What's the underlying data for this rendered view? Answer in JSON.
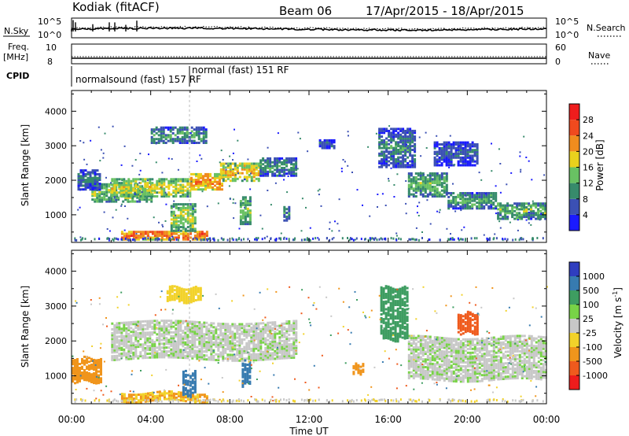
{
  "header": {
    "station": "Kodiak (fitACF)",
    "beam": "Beam 06",
    "dates": "17/Apr/2015 - 18/Apr/2015"
  },
  "side_labels": {
    "nsky": "N.Sky",
    "nsearch": "N.Search",
    "freq": "Freq.",
    "freq_unit": "[MHz]",
    "nave": "Nave",
    "cpid": "CPID"
  },
  "top_scales": {
    "noise_left_top": "10^5",
    "noise_left_bottom": "10^0",
    "noise_right_top": "10^5",
    "noise_right_bottom": "10^0",
    "freq_left_top": "10",
    "freq_left_bottom": "8",
    "nave_right_top": "60",
    "nave_right_bottom": "0"
  },
  "cpid_labels": {
    "mode1": "normalsound (fast) 157 RF",
    "mode2": "normal (fast) 151 RF"
  },
  "chart_data": [
    {
      "type": "heatmap",
      "name": "power",
      "ylabel": "Slant Range [km]",
      "ylim": [
        200,
        4600
      ],
      "yticks": [
        1000,
        2000,
        3000,
        4000
      ],
      "xlabel": "Time UT",
      "xlim_hours": [
        0,
        24
      ],
      "xticks": [
        "00:00",
        "04:00",
        "08:00",
        "12:00",
        "16:00",
        "20:00",
        "00:00"
      ],
      "colorbar": {
        "label": "Power [dB]",
        "range": [
          0,
          32
        ],
        "ticks": [
          "4",
          "8",
          "12",
          "16",
          "20",
          "24",
          "28"
        ],
        "colors": [
          "#1a1aff",
          "#3b50b4",
          "#378b6b",
          "#69c163",
          "#e9d11d",
          "#f08c1e",
          "#f04a1e",
          "#ef1d1d"
        ]
      }
    },
    {
      "type": "heatmap",
      "name": "velocity",
      "ylabel": "Slant Range [km]",
      "ylim": [
        200,
        4600
      ],
      "yticks": [
        1000,
        2000,
        3000,
        4000
      ],
      "xlabel": "Time UT",
      "xlim_hours": [
        0,
        24
      ],
      "xticks": [
        "00:00",
        "04:00",
        "08:00",
        "12:00",
        "16:00",
        "20:00",
        "00:00"
      ],
      "colorbar": {
        "label": "Velocity [m s^-1]",
        "ticks": [
          "1000",
          "500",
          "100",
          "25",
          "-25",
          "-100",
          "-500",
          "-1000"
        ],
        "colors": [
          "#2f3ebf",
          "#377bb0",
          "#3e9d61",
          "#78d347",
          "#c8c8c8",
          "#f2d22a",
          "#f0951c",
          "#ef5a1d",
          "#ee1c1c"
        ]
      }
    }
  ],
  "echo_regions": [
    {
      "t0": 1.0,
      "t1": 4.0,
      "r0": 1350,
      "r1": 1850,
      "p": 13
    },
    {
      "t0": 2.0,
      "t1": 6.0,
      "r0": 1500,
      "r1": 2050,
      "p": 15
    },
    {
      "t0": 6.0,
      "t1": 7.6,
      "r0": 1700,
      "r1": 2150,
      "p": 20
    },
    {
      "t0": 7.5,
      "t1": 9.5,
      "r0": 1950,
      "r1": 2450,
      "p": 17
    },
    {
      "t0": 9.5,
      "t1": 11.3,
      "r0": 2100,
      "r1": 2600,
      "p": 8
    },
    {
      "t0": 4.0,
      "t1": 6.8,
      "r0": 3050,
      "r1": 3500,
      "p": 9
    },
    {
      "t0": 0.3,
      "t1": 1.4,
      "r0": 1700,
      "r1": 2300,
      "p": 6
    },
    {
      "t0": 2.5,
      "t1": 6.8,
      "r0": 250,
      "r1": 500,
      "p": 23
    },
    {
      "t0": 5.0,
      "t1": 6.3,
      "r0": 500,
      "r1": 1300,
      "p": 14
    },
    {
      "t0": 15.5,
      "t1": 17.3,
      "r0": 2350,
      "r1": 3500,
      "p": 7
    },
    {
      "t0": 17.0,
      "t1": 19.0,
      "r0": 1500,
      "r1": 2200,
      "p": 11
    },
    {
      "t0": 19.0,
      "t1": 21.5,
      "r0": 1150,
      "r1": 1600,
      "p": 10
    },
    {
      "t0": 21.5,
      "t1": 24.0,
      "r0": 850,
      "r1": 1300,
      "p": 11
    },
    {
      "t0": 18.3,
      "t1": 20.5,
      "r0": 2400,
      "r1": 3100,
      "p": 5
    },
    {
      "t0": 12.5,
      "t1": 13.3,
      "r0": 2900,
      "r1": 3150,
      "p": 5
    },
    {
      "t0": 8.5,
      "t1": 9.0,
      "r0": 700,
      "r1": 1500,
      "p": 12
    },
    {
      "t0": 10.7,
      "t1": 11.0,
      "r0": 800,
      "r1": 1200,
      "p": 8
    }
  ],
  "velocity_regions": [
    {
      "t0": 2.0,
      "t1": 11.3,
      "r0": 1450,
      "r1": 2500,
      "v": 0
    },
    {
      "t0": 17.0,
      "t1": 24.0,
      "r0": 850,
      "r1": 2100,
      "v": 0
    },
    {
      "t0": 0.0,
      "t1": 1.5,
      "r0": 800,
      "r1": 1500,
      "v": -150
    },
    {
      "t0": 2.5,
      "t1": 6.8,
      "r0": 250,
      "r1": 500,
      "v": -100
    },
    {
      "t0": 5.6,
      "t1": 6.2,
      "r0": 400,
      "r1": 1100,
      "v": 200
    },
    {
      "t0": 15.6,
      "t1": 17.0,
      "r0": 2000,
      "r1": 3500,
      "v": 80
    },
    {
      "t0": 19.5,
      "t1": 20.5,
      "r0": 2200,
      "r1": 2800,
      "v": -600
    },
    {
      "t0": 4.8,
      "t1": 6.5,
      "r0": 3100,
      "r1": 3500,
      "v": -80
    },
    {
      "t0": 8.6,
      "t1": 9.0,
      "r0": 700,
      "r1": 1400,
      "v": 150
    },
    {
      "t0": 14.2,
      "t1": 14.7,
      "r0": 1050,
      "r1": 1300,
      "v": -300
    }
  ]
}
